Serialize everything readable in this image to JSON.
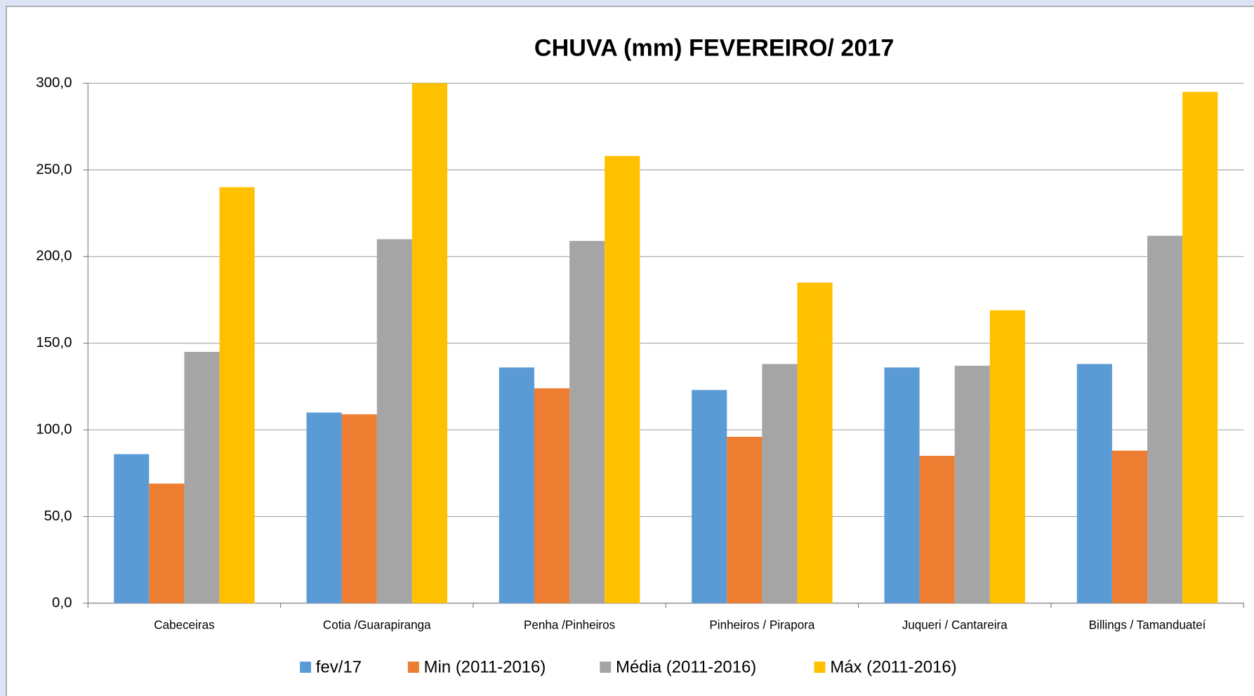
{
  "chart_data": {
    "type": "bar",
    "title": "CHUVA (mm) FEVEREIRO/ 2017",
    "categories": [
      "Cabeceiras",
      "Cotia /Guarapiranga",
      "Penha /Pinheiros",
      "Pinheiros / Pirapora",
      "Juqueri / Cantareira",
      "Billings / Tamanduateí"
    ],
    "series": [
      {
        "name": "fev/17",
        "color": "#5b9bd5",
        "values": [
          86,
          110,
          136,
          123,
          136,
          138
        ]
      },
      {
        "name": "Min (2011-2016)",
        "color": "#ed7d31",
        "values": [
          69,
          109,
          124,
          96,
          85,
          88
        ]
      },
      {
        "name": "Média (2011-2016)",
        "color": "#a5a5a5",
        "values": [
          145,
          210,
          209,
          138,
          137,
          212
        ]
      },
      {
        "name": "Máx  (2011-2016)",
        "color": "#ffc000",
        "values": [
          240,
          300,
          258,
          185,
          169,
          295
        ]
      }
    ],
    "ylim": [
      0,
      300
    ],
    "yticks": [
      {
        "value": 0,
        "label": "0,0"
      },
      {
        "value": 50,
        "label": "50,0"
      },
      {
        "value": 100,
        "label": "100,0"
      },
      {
        "value": 150,
        "label": "150,0"
      },
      {
        "value": 200,
        "label": "200,0"
      },
      {
        "value": 250,
        "label": "250,0"
      },
      {
        "value": 300,
        "label": "300,0"
      }
    ],
    "grid": true,
    "legend": "bottom"
  }
}
